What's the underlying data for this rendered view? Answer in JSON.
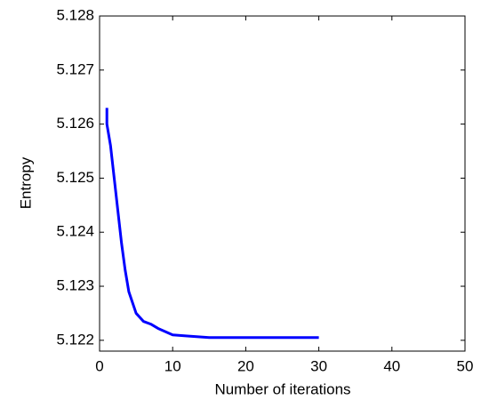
{
  "chart_data": {
    "type": "line",
    "x_label": "Number of iterations",
    "y_label": "Entropy",
    "x": [
      1,
      1,
      1.5,
      2,
      2.5,
      3,
      3.5,
      4,
      5,
      6,
      7,
      8,
      10,
      12,
      15,
      20,
      30
    ],
    "series": [
      {
        "name": "Entropy",
        "color": "#0000ff",
        "values": [
          5.1263,
          5.126,
          5.1256,
          5.125,
          5.1244,
          5.1238,
          5.1233,
          5.1229,
          5.1225,
          5.12235,
          5.1223,
          5.12222,
          5.1221,
          5.12208,
          5.12205,
          5.12205,
          5.12205
        ]
      }
    ],
    "xlim": [
      0,
      50
    ],
    "xticks": [
      0,
      10,
      20,
      30,
      40,
      50
    ],
    "ylim": [
      5.1218,
      5.128
    ],
    "yticks": [
      5.122,
      5.123,
      5.124,
      5.125,
      5.126,
      5.127,
      5.128
    ],
    "grid": false
  }
}
